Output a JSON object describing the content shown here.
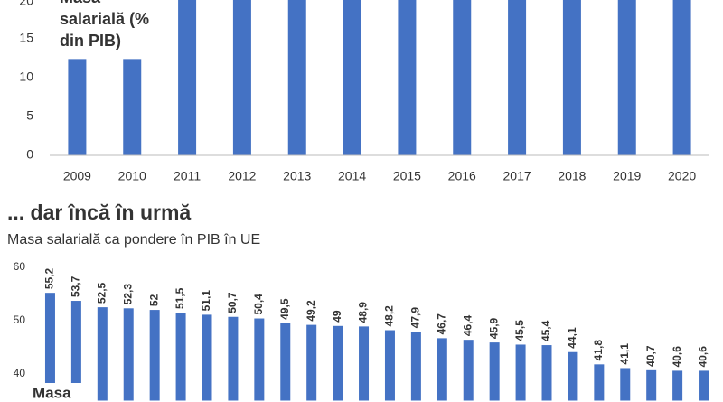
{
  "chart_data": [
    {
      "type": "bar",
      "annotation": [
        "Masa",
        "salarială (%",
        "din PIB)"
      ],
      "categories": [
        "2009",
        "2010",
        "2011",
        "2012",
        "2013",
        "2014",
        "2015",
        "2016",
        "2017",
        "2018",
        "2019",
        "2020"
      ],
      "values": [
        12.4,
        12.4,
        21,
        21,
        21,
        21,
        21,
        21,
        21,
        21,
        21,
        21
      ],
      "color": "#4472c4",
      "ylim": [
        0,
        20
      ],
      "yticks": [
        0,
        5,
        10,
        15,
        20
      ],
      "grid": false
    },
    {
      "type": "bar",
      "title": "... dar încă în urmă",
      "subtitle": "Masa salarială ca pondere în PIB în UE",
      "annotation": "Masa",
      "values": [
        55.2,
        53.7,
        52.5,
        52.3,
        52,
        51.5,
        51.1,
        50.7,
        50.4,
        49.5,
        49.2,
        49,
        48.9,
        48.2,
        47.9,
        46.7,
        46.4,
        45.9,
        45.5,
        45.4,
        44.1,
        41.8,
        41.1,
        40.7,
        40.6,
        40.6
      ],
      "value_labels": [
        "55,2",
        "53,7",
        "52,5",
        "52,3",
        "52",
        "51,5",
        "51,1",
        "50,7",
        "50,4",
        "49,5",
        "49,2",
        "49",
        "48,9",
        "48,2",
        "47,9",
        "46,7",
        "46,4",
        "45,9",
        "45,5",
        "45,4",
        "44,1",
        "41,8",
        "41,1",
        "40,7",
        "40,6",
        "40,6"
      ],
      "color": "#4472c4",
      "ylim": [
        35,
        62
      ],
      "yticks": [
        40,
        50,
        60
      ],
      "grid": false
    }
  ]
}
